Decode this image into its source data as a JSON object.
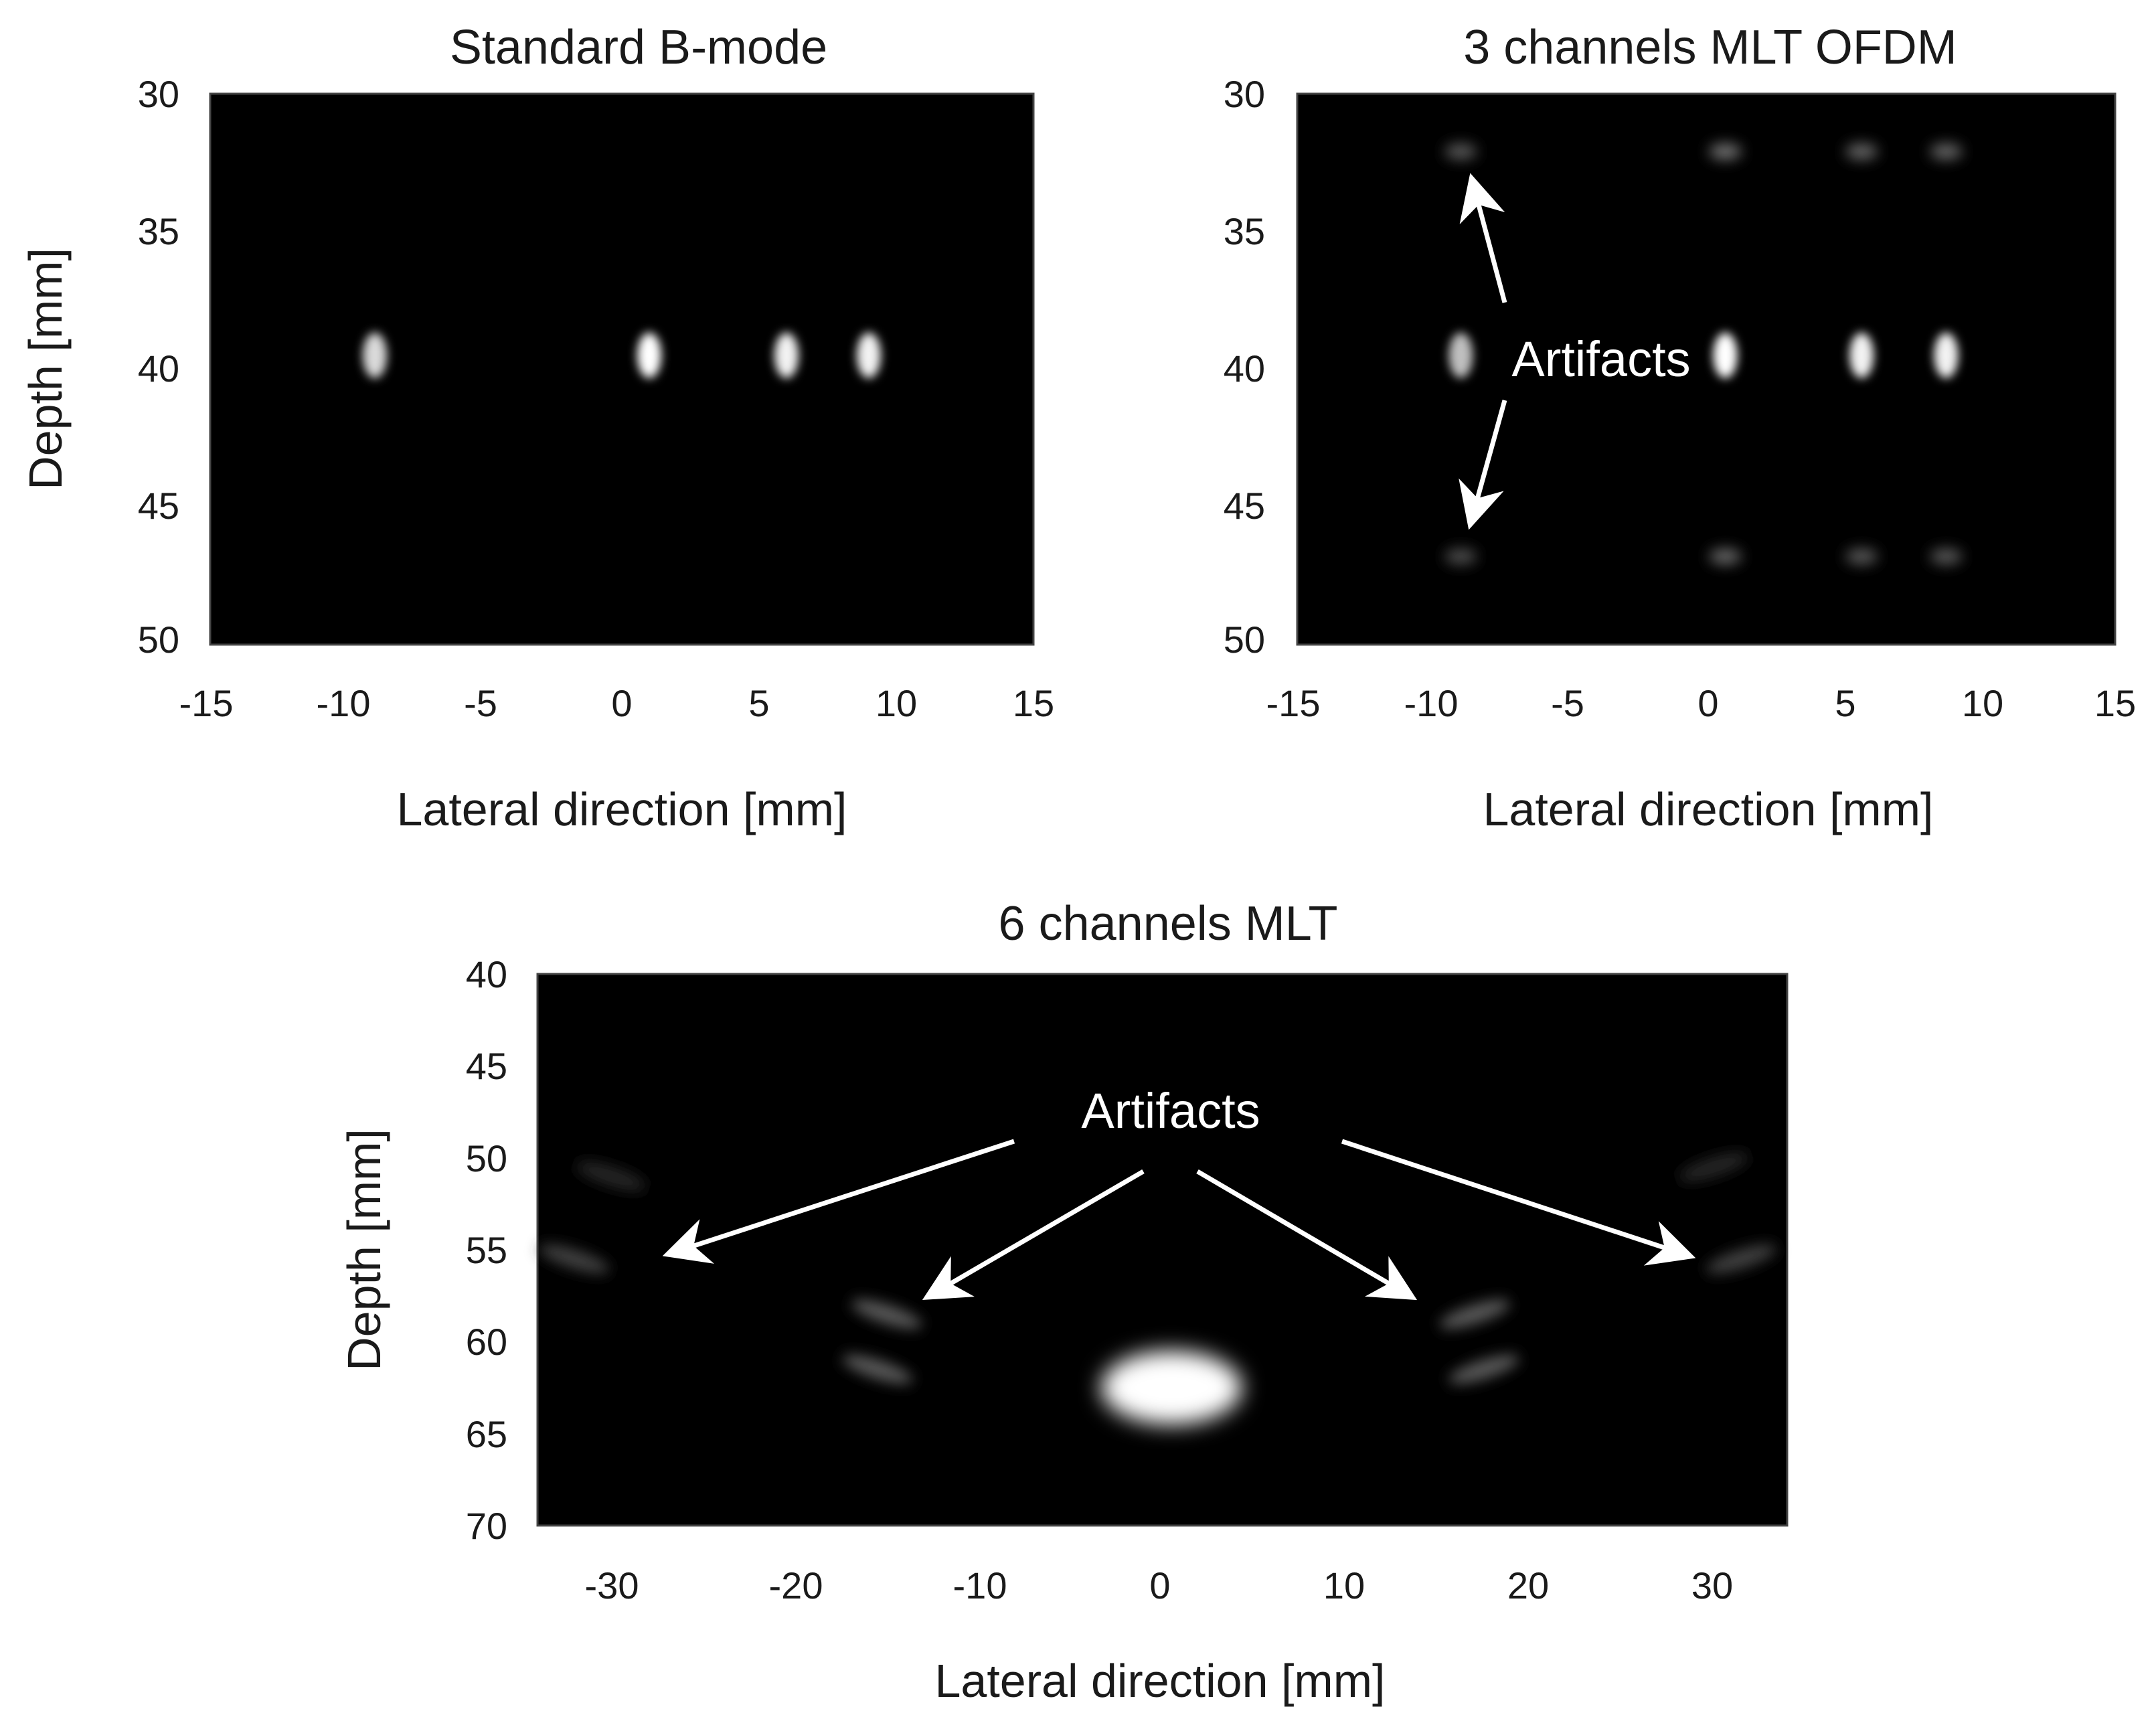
{
  "figure": {
    "panels": [
      {
        "id": "panel-b-mode",
        "title": "Standard B-mode",
        "xlabel": "Lateral direction [mm]",
        "ylabel": "Depth [mm]",
        "xticks": [
          "-15",
          "-10",
          "-5",
          "0",
          "5",
          "10",
          "15"
        ],
        "yticks": [
          "30",
          "35",
          "40",
          "45",
          "50"
        ]
      },
      {
        "id": "panel-3ch-ofdm",
        "title": "3 channels MLT OFDM",
        "xlabel": "Lateral direction [mm]",
        "ylabel": "",
        "xticks": [
          "-15",
          "-10",
          "-5",
          "0",
          "5",
          "10",
          "15"
        ],
        "yticks": [
          "30",
          "35",
          "40",
          "45",
          "50"
        ],
        "annotation": "Artifacts"
      },
      {
        "id": "panel-6ch",
        "title": "6 channels MLT",
        "xlabel": "Lateral direction [mm]",
        "ylabel": "Depth [mm]",
        "xticks": [
          "-30",
          "-20",
          "-10",
          "0",
          "10",
          "20",
          "30"
        ],
        "yticks": [
          "40",
          "45",
          "50",
          "55",
          "60",
          "65",
          "70"
        ],
        "annotation": "Artifacts"
      }
    ]
  },
  "chart_data": [
    {
      "type": "heatmap",
      "title": "Standard B-mode",
      "xlabel": "Lateral direction [mm]",
      "ylabel": "Depth [mm]",
      "xlim": [
        -15,
        15
      ],
      "ylim": [
        30,
        50
      ],
      "y_inverted": true,
      "colormap": "gray",
      "point_targets": [
        {
          "x": -9,
          "y": 39.5,
          "intensity": 0.85
        },
        {
          "x": 1,
          "y": 39.5,
          "intensity": 1.0
        },
        {
          "x": 6,
          "y": 39.5,
          "intensity": 0.95
        },
        {
          "x": 9,
          "y": 39.5,
          "intensity": 0.95
        }
      ]
    },
    {
      "type": "heatmap",
      "title": "3 channels MLT OFDM",
      "xlabel": "Lateral direction [mm]",
      "xlim": [
        -15,
        15
      ],
      "ylim": [
        30,
        50
      ],
      "y_inverted": true,
      "colormap": "gray",
      "point_targets": [
        {
          "x": -9,
          "y": 39.5,
          "intensity": 0.75
        },
        {
          "x": 0.7,
          "y": 39.5,
          "intensity": 1.0
        },
        {
          "x": 5.7,
          "y": 39.5,
          "intensity": 0.95
        },
        {
          "x": 8.8,
          "y": 39.5,
          "intensity": 0.95
        }
      ],
      "artifacts": [
        {
          "x": -9,
          "y": 32.1,
          "intensity": 0.35
        },
        {
          "x": 0.7,
          "y": 32.1,
          "intensity": 0.45
        },
        {
          "x": 5.7,
          "y": 32.1,
          "intensity": 0.4
        },
        {
          "x": 8.8,
          "y": 32.1,
          "intensity": 0.4
        },
        {
          "x": -9,
          "y": 46.8,
          "intensity": 0.3
        },
        {
          "x": 0.7,
          "y": 46.8,
          "intensity": 0.4
        },
        {
          "x": 5.7,
          "y": 46.8,
          "intensity": 0.35
        },
        {
          "x": 8.8,
          "y": 46.8,
          "intensity": 0.35
        }
      ],
      "annotation": "Artifacts"
    },
    {
      "type": "heatmap",
      "title": "6 channels MLT",
      "xlabel": "Lateral direction [mm]",
      "ylabel": "Depth [mm]",
      "xlim": [
        -34,
        34
      ],
      "ylim": [
        40,
        70
      ],
      "y_inverted": true,
      "colormap": "gray",
      "point_targets": [
        {
          "x": 0.5,
          "y": 62.5,
          "intensity": 1.0
        }
      ],
      "artifacts": [
        {
          "x": -15,
          "y": 58.5,
          "intensity": 0.35
        },
        {
          "x": -15.5,
          "y": 61.5,
          "intensity": 0.35
        },
        {
          "x": 17,
          "y": 58.5,
          "intensity": 0.35
        },
        {
          "x": 17.5,
          "y": 61.5,
          "intensity": 0.35
        },
        {
          "x": -32,
          "y": 55.5,
          "intensity": 0.25
        },
        {
          "x": -30,
          "y": 51,
          "intensity": 0.15
        },
        {
          "x": 31.5,
          "y": 55.5,
          "intensity": 0.25
        },
        {
          "x": 30,
          "y": 50.5,
          "intensity": 0.15
        }
      ],
      "annotation": "Artifacts"
    }
  ],
  "colors": {
    "background": "#ffffff",
    "plot_background": "#000000",
    "annotation": "#ffffff",
    "text": "#1a1a1a"
  }
}
